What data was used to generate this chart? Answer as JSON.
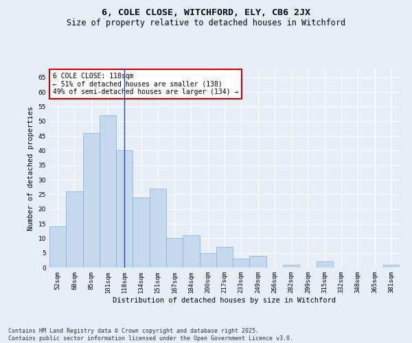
{
  "title1": "6, COLE CLOSE, WITCHFORD, ELY, CB6 2JX",
  "title2": "Size of property relative to detached houses in Witchford",
  "xlabel": "Distribution of detached houses by size in Witchford",
  "ylabel": "Number of detached properties",
  "categories": [
    "52sqm",
    "68sqm",
    "85sqm",
    "101sqm",
    "118sqm",
    "134sqm",
    "151sqm",
    "167sqm",
    "184sqm",
    "200sqm",
    "217sqm",
    "233sqm",
    "249sqm",
    "266sqm",
    "282sqm",
    "299sqm",
    "315sqm",
    "332sqm",
    "348sqm",
    "365sqm",
    "381sqm"
  ],
  "values": [
    14,
    26,
    46,
    52,
    40,
    24,
    27,
    10,
    11,
    5,
    7,
    3,
    4,
    0,
    1,
    0,
    2,
    0,
    0,
    0,
    1
  ],
  "bar_color": "#c5d8ee",
  "bar_edge_color": "#7fafd4",
  "highlight_bar_index": 4,
  "highlight_line_color": "#2244aa",
  "annotation_text": "6 COLE CLOSE: 118sqm\n← 51% of detached houses are smaller (138)\n49% of semi-detached houses are larger (134) →",
  "annotation_box_color": "#ffffff",
  "annotation_box_edge_color": "#cc0000",
  "ylim": [
    0,
    68
  ],
  "yticks": [
    0,
    5,
    10,
    15,
    20,
    25,
    30,
    35,
    40,
    45,
    50,
    55,
    60,
    65
  ],
  "background_color": "#e8eef8",
  "plot_background_color": "#e8eef8",
  "grid_color": "#ffffff",
  "footer_text": "Contains HM Land Registry data © Crown copyright and database right 2025.\nContains public sector information licensed under the Open Government Licence v3.0.",
  "title_fontsize": 9.5,
  "subtitle_fontsize": 8.5,
  "axis_label_fontsize": 7.5,
  "tick_fontsize": 6.5,
  "annotation_fontsize": 7,
  "footer_fontsize": 6
}
